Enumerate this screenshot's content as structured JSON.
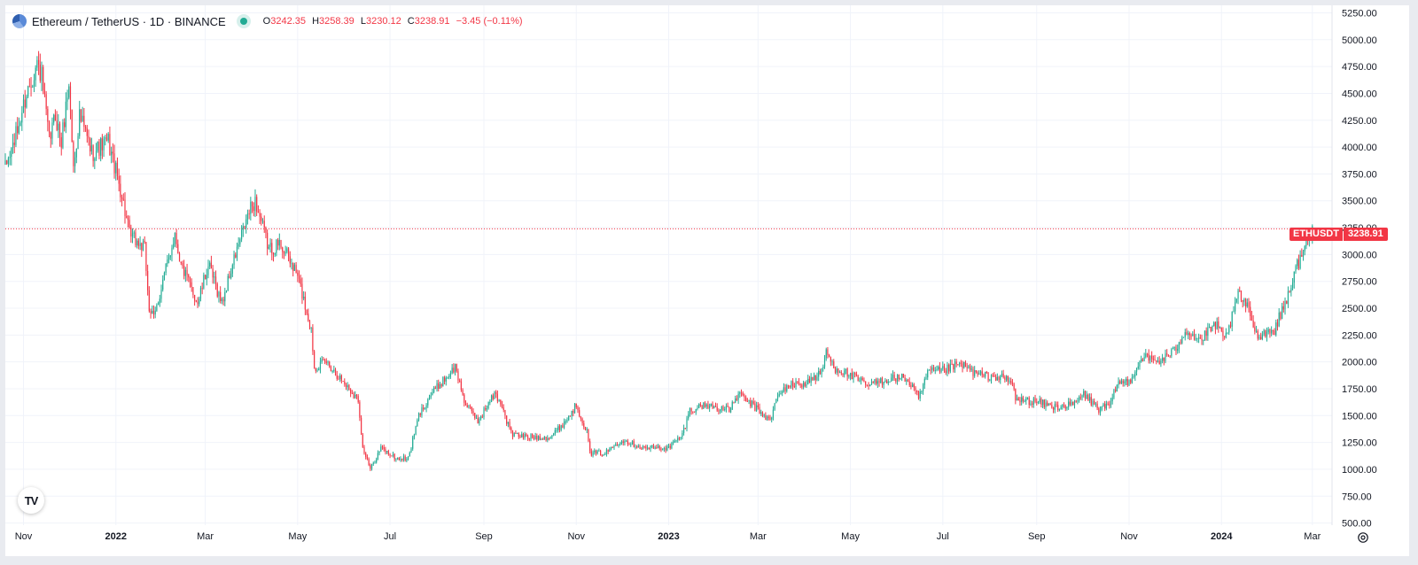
{
  "header": {
    "symbol_title": "Ethereum / TetherUS · 1D · BINANCE",
    "ohlc": {
      "o_label": "O",
      "o_value": "3242.35",
      "h_label": "H",
      "h_value": "3258.39",
      "l_label": "L",
      "l_value": "3230.12",
      "c_label": "C",
      "c_value": "3238.91",
      "change": "−3.45 (−0.11%)"
    }
  },
  "price_badge": {
    "symbol": "ETHUSDT",
    "price": "3238.91"
  },
  "logo_text": "TV",
  "colors": {
    "up": "#22ab94",
    "down": "#f23645",
    "grid": "#f0f3fa",
    "current_line": "#f23645"
  },
  "chart_data": {
    "type": "candlestick",
    "title": "Ethereum / TetherUS · 1D · BINANCE",
    "y_axis": {
      "ticks": [
        500,
        750,
        1000,
        1250,
        1500,
        1750,
        2000,
        2250,
        2500,
        2750,
        3000,
        3250,
        3500,
        3750,
        4000,
        4250,
        4500,
        4750,
        5000,
        5250
      ],
      "tick_labels": [
        "500.00",
        "750.00",
        "1000.00",
        "1250.00",
        "1500.00",
        "1750.00",
        "2000.00",
        "2250.00",
        "2500.00",
        "2750.00",
        "3000.00",
        "3250.00",
        "3500.00",
        "3750.00",
        "4000.00",
        "4250.00",
        "4500.00",
        "4750.00",
        "5000.00",
        "5250.00"
      ],
      "range": [
        480,
        5320
      ]
    },
    "x_axis": {
      "range": [
        "2021-10-20",
        "2024-03-14"
      ],
      "labels": [
        {
          "text": "Nov",
          "date": "2021-11-01",
          "bold": false
        },
        {
          "text": "2022",
          "date": "2022-01-01",
          "bold": true
        },
        {
          "text": "Mar",
          "date": "2022-03-01",
          "bold": false
        },
        {
          "text": "May",
          "date": "2022-05-01",
          "bold": false
        },
        {
          "text": "Jul",
          "date": "2022-07-01",
          "bold": false
        },
        {
          "text": "Sep",
          "date": "2022-09-01",
          "bold": false
        },
        {
          "text": "Nov",
          "date": "2022-11-01",
          "bold": false
        },
        {
          "text": "2023",
          "date": "2023-01-01",
          "bold": true
        },
        {
          "text": "Mar",
          "date": "2023-03-01",
          "bold": false
        },
        {
          "text": "May",
          "date": "2023-05-01",
          "bold": false
        },
        {
          "text": "Jul",
          "date": "2023-07-01",
          "bold": false
        },
        {
          "text": "Sep",
          "date": "2023-09-01",
          "bold": false
        },
        {
          "text": "Nov",
          "date": "2023-11-01",
          "bold": false
        },
        {
          "text": "2024",
          "date": "2024-01-01",
          "bold": true
        },
        {
          "text": "Mar",
          "date": "2024-03-01",
          "bold": false
        }
      ]
    },
    "current_price": 3238.91,
    "close_path": [
      [
        "2021-10-20",
        3800
      ],
      [
        "2021-10-28",
        4150
      ],
      [
        "2021-11-03",
        4500
      ],
      [
        "2021-11-10",
        4780
      ],
      [
        "2021-11-13",
        4650
      ],
      [
        "2021-11-18",
        4050
      ],
      [
        "2021-11-22",
        4300
      ],
      [
        "2021-11-26",
        4040
      ],
      [
        "2021-12-01",
        4600
      ],
      [
        "2021-12-04",
        3800
      ],
      [
        "2021-12-08",
        4300
      ],
      [
        "2021-12-16",
        3950
      ],
      [
        "2021-12-27",
        4050
      ],
      [
        "2022-01-05",
        3550
      ],
      [
        "2022-01-10",
        3180
      ],
      [
        "2022-01-20",
        3050
      ],
      [
        "2022-01-23",
        2500
      ],
      [
        "2022-01-26",
        2400
      ],
      [
        "2022-02-01",
        2750
      ],
      [
        "2022-02-09",
        3200
      ],
      [
        "2022-02-13",
        2900
      ],
      [
        "2022-02-24",
        2550
      ],
      [
        "2022-03-03",
        2900
      ],
      [
        "2022-03-12",
        2550
      ],
      [
        "2022-03-20",
        2950
      ],
      [
        "2022-03-30",
        3400
      ],
      [
        "2022-04-03",
        3500
      ],
      [
        "2022-04-12",
        3050
      ],
      [
        "2022-04-20",
        3100
      ],
      [
        "2022-05-01",
        2800
      ],
      [
        "2022-05-10",
        2300
      ],
      [
        "2022-05-12",
        1950
      ],
      [
        "2022-05-20",
        2000
      ],
      [
        "2022-06-01",
        1800
      ],
      [
        "2022-06-10",
        1650
      ],
      [
        "2022-06-13",
        1200
      ],
      [
        "2022-06-18",
        1000
      ],
      [
        "2022-06-25",
        1200
      ],
      [
        "2022-07-05",
        1100
      ],
      [
        "2022-07-13",
        1100
      ],
      [
        "2022-07-20",
        1500
      ],
      [
        "2022-07-28",
        1700
      ],
      [
        "2022-08-13",
        1950
      ],
      [
        "2022-08-20",
        1600
      ],
      [
        "2022-08-28",
        1450
      ],
      [
        "2022-09-08",
        1700
      ],
      [
        "2022-09-13",
        1600
      ],
      [
        "2022-09-16",
        1450
      ],
      [
        "2022-09-20",
        1320
      ],
      [
        "2022-10-02",
        1300
      ],
      [
        "2022-10-15",
        1300
      ],
      [
        "2022-10-25",
        1450
      ],
      [
        "2022-11-01",
        1600
      ],
      [
        "2022-11-08",
        1350
      ],
      [
        "2022-11-10",
        1150
      ],
      [
        "2022-11-20",
        1150
      ],
      [
        "2022-12-01",
        1280
      ],
      [
        "2022-12-15",
        1200
      ],
      [
        "2023-01-01",
        1200
      ],
      [
        "2023-01-10",
        1320
      ],
      [
        "2023-01-15",
        1550
      ],
      [
        "2023-01-25",
        1600
      ],
      [
        "2023-02-10",
        1550
      ],
      [
        "2023-02-16",
        1700
      ],
      [
        "2023-02-25",
        1600
      ],
      [
        "2023-03-09",
        1450
      ],
      [
        "2023-03-13",
        1650
      ],
      [
        "2023-03-20",
        1780
      ],
      [
        "2023-04-01",
        1800
      ],
      [
        "2023-04-12",
        1900
      ],
      [
        "2023-04-15",
        2100
      ],
      [
        "2023-04-20",
        1950
      ],
      [
        "2023-04-28",
        1900
      ],
      [
        "2023-05-12",
        1780
      ],
      [
        "2023-05-28",
        1850
      ],
      [
        "2023-06-06",
        1850
      ],
      [
        "2023-06-12",
        1750
      ],
      [
        "2023-06-15",
        1650
      ],
      [
        "2023-06-21",
        1900
      ],
      [
        "2023-07-01",
        1920
      ],
      [
        "2023-07-13",
        1980
      ],
      [
        "2023-07-24",
        1880
      ],
      [
        "2023-08-10",
        1850
      ],
      [
        "2023-08-16",
        1800
      ],
      [
        "2023-08-18",
        1650
      ],
      [
        "2023-09-01",
        1630
      ],
      [
        "2023-09-12",
        1580
      ],
      [
        "2023-09-25",
        1600
      ],
      [
        "2023-10-02",
        1700
      ],
      [
        "2023-10-12",
        1560
      ],
      [
        "2023-10-20",
        1600
      ],
      [
        "2023-10-24",
        1800
      ],
      [
        "2023-11-01",
        1820
      ],
      [
        "2023-11-10",
        2050
      ],
      [
        "2023-11-20",
        2000
      ],
      [
        "2023-12-01",
        2100
      ],
      [
        "2023-12-08",
        2300
      ],
      [
        "2023-12-18",
        2200
      ],
      [
        "2023-12-28",
        2350
      ],
      [
        "2024-01-03",
        2200
      ],
      [
        "2024-01-10",
        2500
      ],
      [
        "2024-01-12",
        2650
      ],
      [
        "2024-01-20",
        2450
      ],
      [
        "2024-01-24",
        2250
      ],
      [
        "2024-02-05",
        2300
      ],
      [
        "2024-02-12",
        2550
      ],
      [
        "2024-02-20",
        2900
      ],
      [
        "2024-02-26",
        3100
      ],
      [
        "2024-03-01",
        3240
      ]
    ]
  }
}
